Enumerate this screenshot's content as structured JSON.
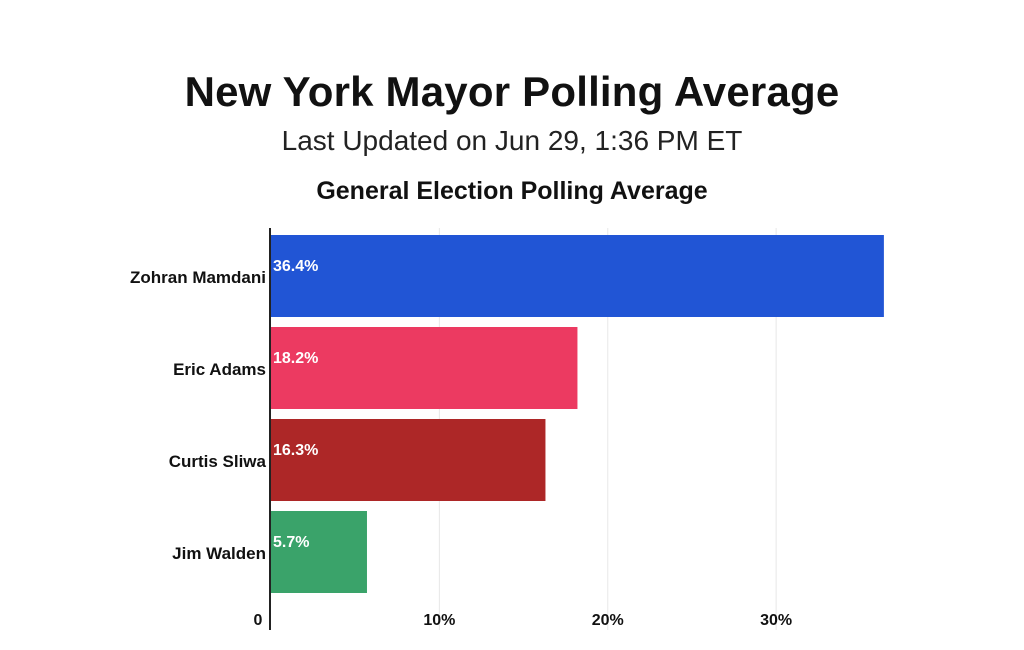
{
  "header": {
    "title": "New York Mayor Polling Average",
    "updated": "Last Updated on Jun 29, 1:36 PM ET",
    "subtitle": "General Election Polling Average"
  },
  "chart_data": {
    "type": "bar",
    "orientation": "horizontal",
    "title": "General Election Polling Average",
    "categories": [
      "Zohran Mamdani",
      "Eric Adams",
      "Curtis Sliwa",
      "Jim Walden"
    ],
    "values": [
      36.4,
      18.2,
      16.3,
      5.7
    ],
    "value_labels": [
      "36.4%",
      "18.2%",
      "16.3%",
      "5.7%"
    ],
    "colors": [
      "#2155d5",
      "#ec3a61",
      "#ad2727",
      "#3aa36a"
    ],
    "xlim": [
      0,
      37
    ],
    "xticks": [
      0,
      10,
      20,
      30
    ],
    "xtick_labels": [
      "0",
      "10%",
      "20%",
      "30%"
    ],
    "grid": true,
    "legend": "none"
  }
}
